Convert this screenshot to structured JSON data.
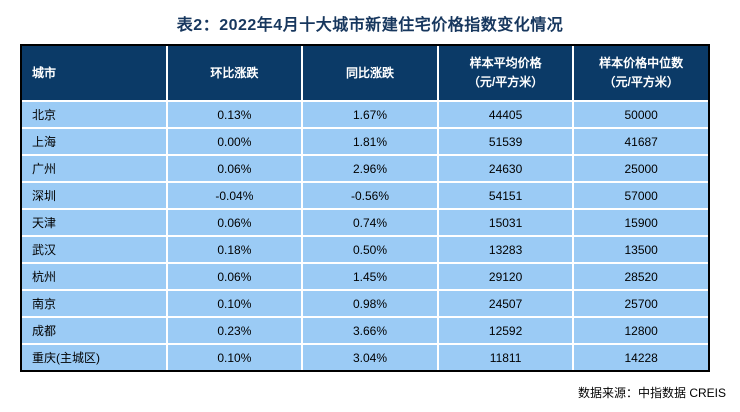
{
  "chart_data": {
    "type": "table",
    "title": "表2：2022年4月十大城市新建住宅价格指数变化情况",
    "columns": [
      "城市",
      "环比涨跌",
      "同比涨跌",
      "样本平均价格（元/平方米）",
      "样本价格中位数（元/平方米）"
    ],
    "rows": [
      [
        "北京",
        "0.13%",
        "1.67%",
        "44405",
        "50000"
      ],
      [
        "上海",
        "0.00%",
        "1.81%",
        "51539",
        "41687"
      ],
      [
        "广州",
        "0.06%",
        "2.96%",
        "24630",
        "25000"
      ],
      [
        "深圳",
        "-0.04%",
        "-0.56%",
        "54151",
        "57000"
      ],
      [
        "天津",
        "0.06%",
        "0.74%",
        "15031",
        "15900"
      ],
      [
        "武汉",
        "0.18%",
        "0.50%",
        "13283",
        "13500"
      ],
      [
        "杭州",
        "0.06%",
        "1.45%",
        "29120",
        "28520"
      ],
      [
        "南京",
        "0.10%",
        "0.98%",
        "24507",
        "25700"
      ],
      [
        "成都",
        "0.23%",
        "3.66%",
        "12592",
        "12800"
      ],
      [
        "重庆(主城区)",
        "0.10%",
        "3.04%",
        "11811",
        "14228"
      ]
    ],
    "source_note": "数据来源：中指数据 CREIS"
  },
  "header": {
    "cells": [
      {
        "line1": "城市",
        "line2": ""
      },
      {
        "line1": "环比涨跌",
        "line2": ""
      },
      {
        "line1": "同比涨跌",
        "line2": ""
      },
      {
        "line1": "样本平均价格",
        "line2": "（元/平方米）"
      },
      {
        "line1": "样本价格中位数",
        "line2": "（元/平方米）"
      }
    ]
  },
  "colors": {
    "header_bg": "#0b3a67",
    "row_bg": "#9bcbf5",
    "title_color": "#17375e",
    "border_color": "#000000",
    "separator_color": "#ffffff"
  }
}
